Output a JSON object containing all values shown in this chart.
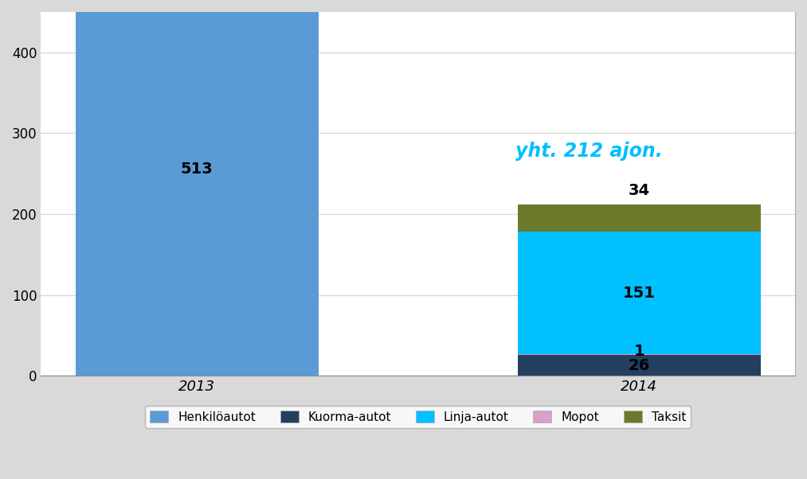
{
  "categories": [
    "2013",
    "2014"
  ],
  "series": {
    "Henkilöautot": [
      513,
      0
    ],
    "Kuorma-autot": [
      0,
      26
    ],
    "Mopot": [
      0,
      1
    ],
    "Linja-autot": [
      0,
      151
    ],
    "Taksit": [
      0,
      34
    ]
  },
  "colors": {
    "Henkilöautot": "#5B9BD5",
    "Kuorma-autot": "#243F60",
    "Mopot": "#D9A0C8",
    "Linja-autot": "#00C0FF",
    "Taksit": "#6B7A2A"
  },
  "annotation": {
    "text": "yht. 212 ajon.",
    "color": "#00BFFF",
    "fontsize": 17,
    "fontstyle": "italic",
    "fontweight": "bold"
  },
  "ylim": [
    0,
    450
  ],
  "yticks": [
    0,
    100,
    200,
    300,
    400
  ],
  "background_color": "#D9D9D9",
  "plot_background": "#FFFFFF",
  "grid_color": "#D9D9D9",
  "bar_width": 0.55,
  "legend_order": [
    "Henkilöautot",
    "Kuorma-autot",
    "Linja-autot",
    "Mopot",
    "Taksit"
  ],
  "label_fontsize": 14
}
